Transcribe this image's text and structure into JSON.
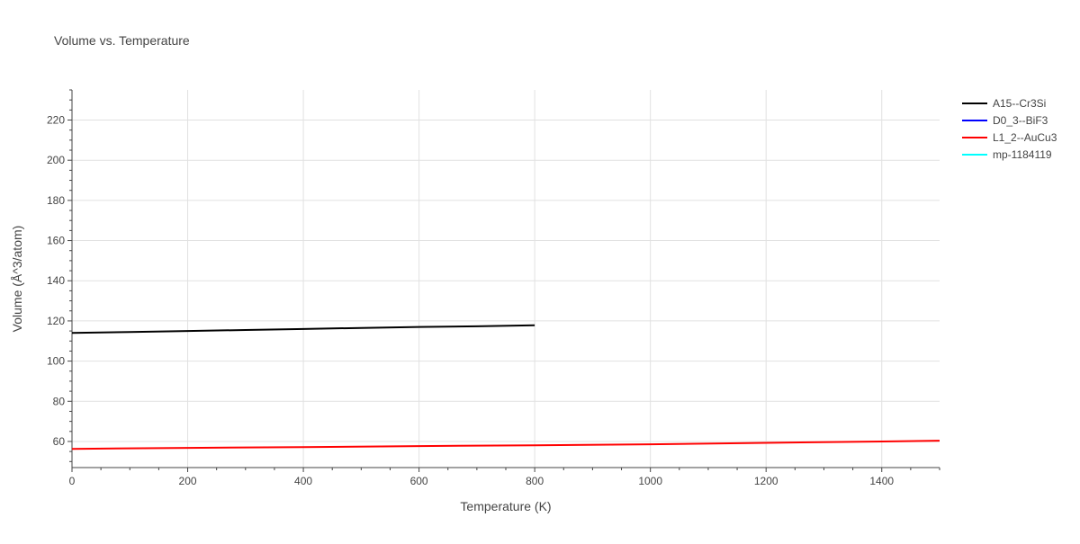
{
  "chart_data": {
    "type": "line",
    "title": "Volume vs. Temperature",
    "xlabel": "Temperature (K)",
    "ylabel": "Volume (Å^3/atom)",
    "xlim": [
      0,
      1500
    ],
    "ylim": [
      47,
      235
    ],
    "x_ticks": [
      0,
      200,
      400,
      600,
      800,
      1000,
      1200,
      1400
    ],
    "y_ticks": [
      60,
      80,
      100,
      120,
      140,
      160,
      180,
      200,
      220
    ],
    "grid": true,
    "legend_position": "top-right",
    "series": [
      {
        "name": "A15--Cr3Si",
        "color": "#000000",
        "x": [
          0,
          100,
          200,
          300,
          400,
          500,
          600,
          700,
          800
        ],
        "y": [
          114.0,
          114.5,
          115.0,
          115.5,
          116.0,
          116.5,
          117.0,
          117.3,
          117.8
        ]
      },
      {
        "name": "D0_3--BiF3",
        "color": "#0000ff",
        "x": [],
        "y": []
      },
      {
        "name": "L1_2--AuCu3",
        "color": "#ff0000",
        "x": [
          0,
          200,
          400,
          600,
          800,
          1000,
          1200,
          1400,
          1500
        ],
        "y": [
          56.3,
          56.8,
          57.2,
          57.7,
          58.1,
          58.6,
          59.3,
          60.0,
          60.4
        ]
      },
      {
        "name": "mp-1184119",
        "color": "#00ffff",
        "x": [],
        "y": []
      }
    ]
  }
}
